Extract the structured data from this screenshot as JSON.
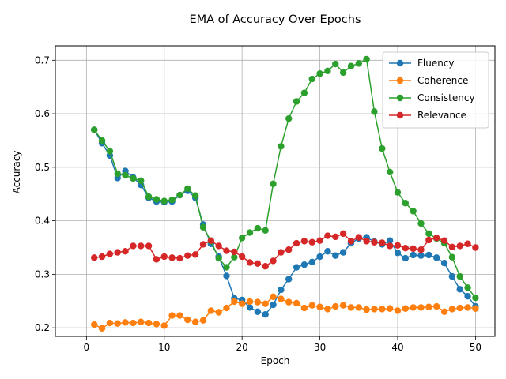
{
  "chart_data": {
    "type": "line",
    "title": "EMA of Accuracy Over Epochs",
    "xlabel": "Epoch",
    "ylabel": "Accuracy",
    "xlim": [
      -4.0,
      52.5
    ],
    "ylim": [
      0.184,
      0.727
    ],
    "xticks": [
      0,
      10,
      20,
      30,
      40,
      50
    ],
    "yticks": [
      0.2,
      0.3,
      0.4,
      0.5,
      0.6,
      0.7
    ],
    "grid": true,
    "legend_position": "top-right",
    "x": [
      1,
      2,
      3,
      4,
      5,
      6,
      7,
      8,
      9,
      10,
      11,
      12,
      13,
      14,
      15,
      16,
      17,
      18,
      19,
      20,
      21,
      22,
      23,
      24,
      25,
      26,
      27,
      28,
      29,
      30,
      31,
      32,
      33,
      34,
      35,
      36,
      37,
      38,
      39,
      40,
      41,
      42,
      43,
      44,
      45,
      46,
      47,
      48,
      49,
      50
    ],
    "series": [
      {
        "name": "Fluency",
        "color": "#1f77b4",
        "values": [
          0.57,
          0.545,
          0.522,
          0.48,
          0.493,
          0.481,
          0.467,
          0.443,
          0.436,
          0.435,
          0.436,
          0.448,
          0.456,
          0.443,
          0.393,
          0.357,
          0.333,
          0.297,
          0.255,
          0.252,
          0.238,
          0.23,
          0.225,
          0.243,
          0.271,
          0.291,
          0.313,
          0.318,
          0.323,
          0.333,
          0.343,
          0.335,
          0.341,
          0.358,
          0.367,
          0.369,
          0.361,
          0.356,
          0.363,
          0.34,
          0.33,
          0.336,
          0.335,
          0.336,
          0.331,
          0.321,
          0.296,
          0.272,
          0.259,
          0.24
        ]
      },
      {
        "name": "Coherence",
        "color": "#ff7f0e",
        "values": [
          0.206,
          0.199,
          0.209,
          0.208,
          0.21,
          0.209,
          0.211,
          0.209,
          0.207,
          0.204,
          0.223,
          0.223,
          0.215,
          0.211,
          0.214,
          0.232,
          0.229,
          0.237,
          0.249,
          0.245,
          0.249,
          0.248,
          0.245,
          0.258,
          0.254,
          0.248,
          0.246,
          0.237,
          0.242,
          0.239,
          0.235,
          0.24,
          0.242,
          0.238,
          0.238,
          0.234,
          0.235,
          0.235,
          0.236,
          0.232,
          0.236,
          0.238,
          0.238,
          0.239,
          0.24,
          0.23,
          0.235,
          0.237,
          0.238,
          0.236
        ]
      },
      {
        "name": "Consistency",
        "color": "#2ca02c",
        "values": [
          0.57,
          0.55,
          0.53,
          0.488,
          0.485,
          0.479,
          0.475,
          0.445,
          0.44,
          0.437,
          0.439,
          0.448,
          0.46,
          0.447,
          0.388,
          0.362,
          0.33,
          0.313,
          0.332,
          0.368,
          0.378,
          0.386,
          0.382,
          0.469,
          0.539,
          0.591,
          0.623,
          0.639,
          0.665,
          0.675,
          0.68,
          0.693,
          0.677,
          0.689,
          0.694,
          0.702,
          0.604,
          0.535,
          0.491,
          0.453,
          0.433,
          0.418,
          0.395,
          0.376,
          0.367,
          0.358,
          0.332,
          0.296,
          0.275,
          0.256
        ]
      },
      {
        "name": "Relevance",
        "color": "#d62728",
        "values": [
          0.331,
          0.333,
          0.338,
          0.341,
          0.343,
          0.353,
          0.353,
          0.353,
          0.328,
          0.333,
          0.331,
          0.33,
          0.335,
          0.337,
          0.356,
          0.363,
          0.353,
          0.344,
          0.342,
          0.333,
          0.322,
          0.32,
          0.315,
          0.325,
          0.341,
          0.346,
          0.358,
          0.362,
          0.36,
          0.363,
          0.372,
          0.37,
          0.376,
          0.362,
          0.369,
          0.362,
          0.36,
          0.359,
          0.353,
          0.354,
          0.349,
          0.348,
          0.346,
          0.364,
          0.368,
          0.363,
          0.351,
          0.353,
          0.357,
          0.35
        ]
      }
    ]
  }
}
